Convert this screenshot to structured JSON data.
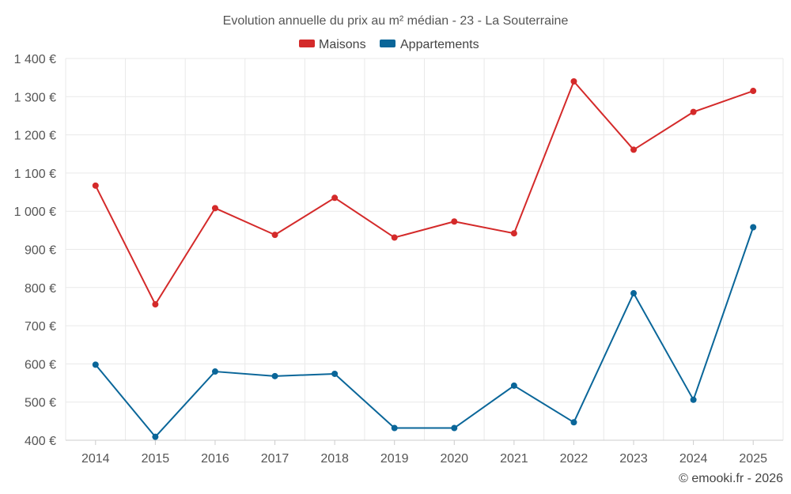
{
  "chart_data": {
    "type": "line",
    "title": "Evolution annuelle du prix au m² médian - 23 - La Souterraine",
    "categories": [
      "2014",
      "2015",
      "2016",
      "2017",
      "2018",
      "2019",
      "2020",
      "2021",
      "2022",
      "2023",
      "2024",
      "2025"
    ],
    "series": [
      {
        "name": "Maisons",
        "color": "#d42a2a",
        "values": [
          1067,
          756,
          1008,
          938,
          1035,
          931,
          973,
          942,
          1340,
          1161,
          1260,
          1315
        ]
      },
      {
        "name": "Appartements",
        "color": "#0a6699",
        "values": [
          598,
          409,
          580,
          568,
          574,
          432,
          432,
          543,
          447,
          785,
          506,
          958
        ]
      }
    ],
    "ylim": [
      400,
      1400
    ],
    "yticks": [
      400,
      500,
      600,
      700,
      800,
      900,
      1000,
      1100,
      1200,
      1300,
      1400
    ],
    "ytick_labels": [
      "400 €",
      "500 €",
      "600 €",
      "700 €",
      "800 €",
      "900 €",
      "1 000 €",
      "1 100 €",
      "1 200 €",
      "1 300 €",
      "1 400 €"
    ],
    "xlabel": "",
    "ylabel": "",
    "grid": true,
    "legend_position": "top-center",
    "credit": "© emooki.fr - 2026"
  }
}
